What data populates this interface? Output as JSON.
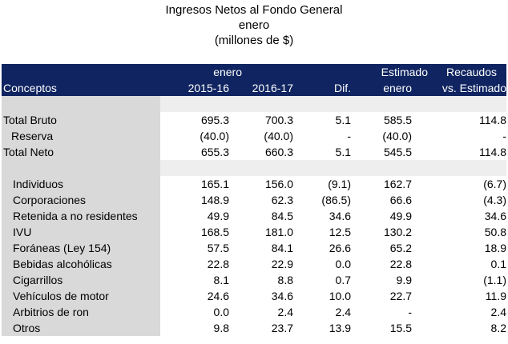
{
  "titles": {
    "line1": "Ingresos Netos al Fondo General",
    "line2": "enero",
    "line3": "(millones de $)"
  },
  "header": {
    "row1": {
      "enero": "enero",
      "estimado": "Estimado",
      "recaudos": "Recaudos"
    },
    "row2": {
      "conceptos": "Conceptos",
      "y2015": "2015-16",
      "y2016": "2016-17",
      "dif": "Dif.",
      "enero": "enero",
      "vs": "vs. Estimado"
    }
  },
  "rows": [
    {
      "label": "Total Bruto",
      "c1": "695.3",
      "c2": "700.3",
      "c3": "5.1",
      "c4": "585.5",
      "c5": "114.8"
    },
    {
      "label": "Reserva",
      "c1": "(40.0)",
      "c2": "(40.0)",
      "c3": "-",
      "c4": "(40.0)",
      "c5": "-"
    },
    {
      "label": "Total Neto",
      "c1": "655.3",
      "c2": "660.3",
      "c3": "5.1",
      "c4": "545.5",
      "c5": "114.8"
    },
    {
      "label": "Individuos",
      "c1": "165.1",
      "c2": "156.0",
      "c3": "(9.1)",
      "c4": "162.7",
      "c5": "(6.7)"
    },
    {
      "label": "Corporaciones",
      "c1": "148.9",
      "c2": "62.3",
      "c3": "(86.5)",
      "c4": "66.6",
      "c5": "(4.3)"
    },
    {
      "label": "Retenida a no residentes",
      "c1": "49.9",
      "c2": "84.5",
      "c3": "34.6",
      "c4": "49.9",
      "c5": "34.6"
    },
    {
      "label": "IVU",
      "c1": "168.5",
      "c2": "181.0",
      "c3": "12.5",
      "c4": "130.2",
      "c5": "50.8"
    },
    {
      "label": "Foráneas (Ley 154)",
      "c1": "57.5",
      "c2": "84.1",
      "c3": "26.6",
      "c4": "65.2",
      "c5": "18.9"
    },
    {
      "label": "Bebidas alcohólicas",
      "c1": "22.8",
      "c2": "22.9",
      "c3": "0.0",
      "c4": "22.8",
      "c5": "0.1"
    },
    {
      "label": "Cigarrillos",
      "c1": "8.1",
      "c2": "8.8",
      "c3": "0.7",
      "c4": "9.9",
      "c5": "(1.1)"
    },
    {
      "label": "Vehículos de motor",
      "c1": "24.6",
      "c2": "34.6",
      "c3": "10.0",
      "c4": "22.7",
      "c5": "11.9"
    },
    {
      "label": "Arbitrios de ron",
      "c1": "0.0",
      "c2": "2.4",
      "c3": "2.4",
      "c4": "-",
      "c5": "2.4"
    },
    {
      "label": "Otros",
      "c1": "9.8",
      "c2": "23.7",
      "c3": "13.9",
      "c4": "15.5",
      "c5": "8.2"
    }
  ]
}
